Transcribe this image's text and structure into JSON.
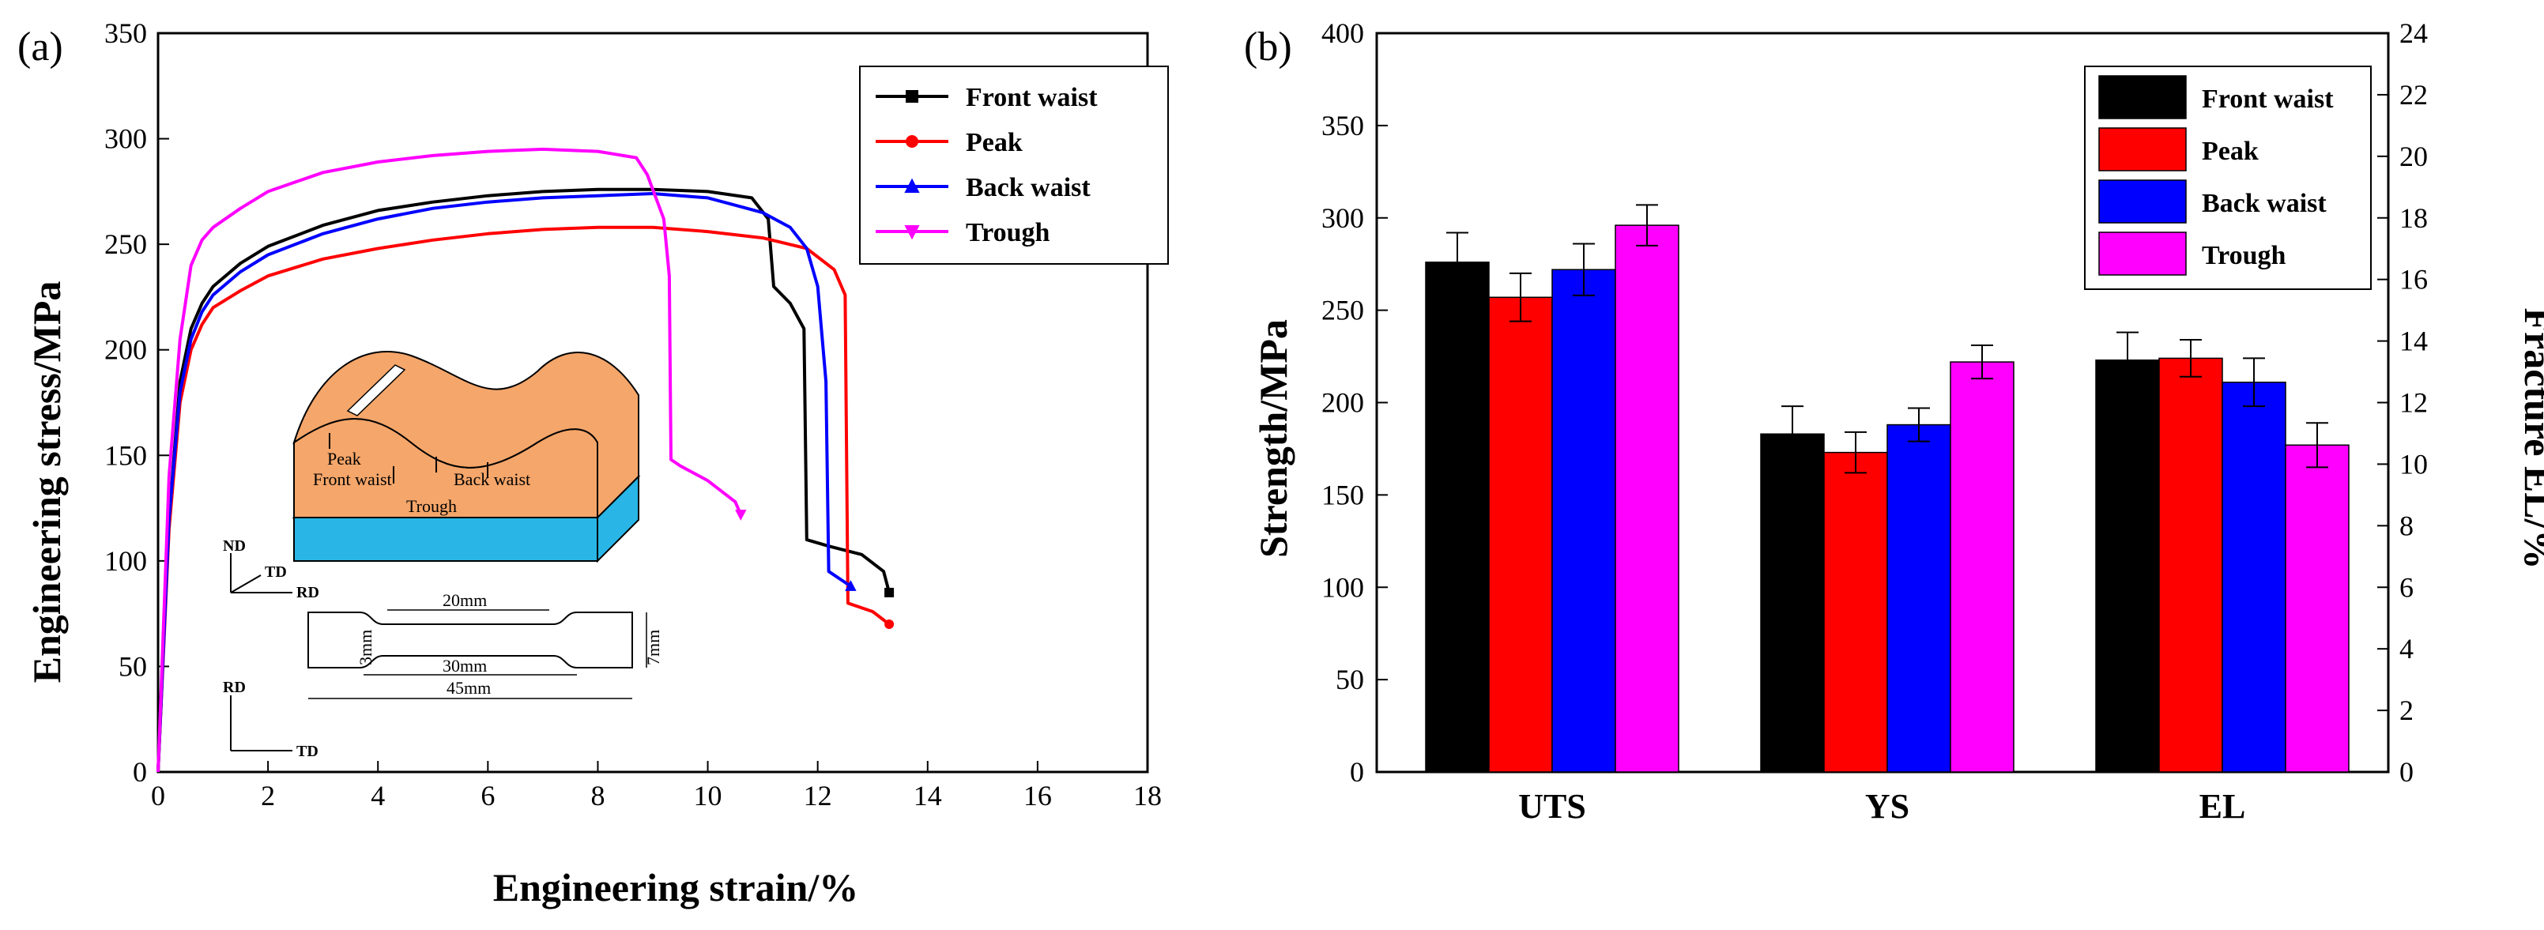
{
  "chart_data": [
    {
      "type": "line",
      "panel_label": "(a)",
      "xlabel": "Engineering strain/%",
      "ylabel": "Engineering stress/MPa",
      "xlim": [
        0,
        18
      ],
      "ylim": [
        0,
        350
      ],
      "xticks": [
        0,
        2,
        4,
        6,
        8,
        10,
        12,
        14,
        16,
        18
      ],
      "yticks": [
        0,
        50,
        100,
        150,
        200,
        250,
        300,
        350
      ],
      "legend_position": "top-right",
      "series": [
        {
          "name": "Front waist",
          "color": "#000000",
          "marker": "square",
          "points": [
            [
              0,
              0
            ],
            [
              0.2,
              120
            ],
            [
              0.4,
              185
            ],
            [
              0.6,
              210
            ],
            [
              0.8,
              222
            ],
            [
              1,
              230
            ],
            [
              1.5,
              241
            ],
            [
              2,
              249
            ],
            [
              3,
              259
            ],
            [
              4,
              266
            ],
            [
              5,
              270
            ],
            [
              6,
              273
            ],
            [
              7,
              275
            ],
            [
              8,
              276
            ],
            [
              9,
              276
            ],
            [
              10,
              275
            ],
            [
              10.8,
              272
            ],
            [
              11.1,
              262
            ],
            [
              11.2,
              230
            ],
            [
              11.5,
              222
            ],
            [
              11.75,
              210
            ],
            [
              11.8,
              110
            ],
            [
              12.2,
              107
            ],
            [
              12.8,
              103
            ],
            [
              13.2,
              95
            ],
            [
              13.3,
              85
            ]
          ]
        },
        {
          "name": "Peak",
          "color": "#ff0000",
          "marker": "circle",
          "points": [
            [
              0,
              0
            ],
            [
              0.2,
              115
            ],
            [
              0.4,
              175
            ],
            [
              0.6,
              200
            ],
            [
              0.8,
              212
            ],
            [
              1,
              220
            ],
            [
              1.5,
              228
            ],
            [
              2,
              235
            ],
            [
              3,
              243
            ],
            [
              4,
              248
            ],
            [
              5,
              252
            ],
            [
              6,
              255
            ],
            [
              7,
              257
            ],
            [
              8,
              258
            ],
            [
              9,
              258
            ],
            [
              10,
              256
            ],
            [
              11,
              253
            ],
            [
              11.8,
              248
            ],
            [
              12.3,
              238
            ],
            [
              12.5,
              226
            ],
            [
              12.55,
              80
            ],
            [
              13,
              76
            ],
            [
              13.3,
              70
            ]
          ]
        },
        {
          "name": "Back waist",
          "color": "#0000ff",
          "marker": "triangle-up",
          "points": [
            [
              0,
              0
            ],
            [
              0.2,
              120
            ],
            [
              0.4,
              180
            ],
            [
              0.6,
              205
            ],
            [
              0.8,
              218
            ],
            [
              1,
              226
            ],
            [
              1.5,
              237
            ],
            [
              2,
              245
            ],
            [
              3,
              255
            ],
            [
              4,
              262
            ],
            [
              5,
              267
            ],
            [
              6,
              270
            ],
            [
              7,
              272
            ],
            [
              8,
              273
            ],
            [
              9,
              274
            ],
            [
              10,
              272
            ],
            [
              11,
              265
            ],
            [
              11.5,
              258
            ],
            [
              11.8,
              248
            ],
            [
              12,
              230
            ],
            [
              12.15,
              185
            ],
            [
              12.2,
              95
            ],
            [
              12.6,
              88
            ]
          ]
        },
        {
          "name": "Trough",
          "color": "#ff00ff",
          "marker": "triangle-down",
          "points": [
            [
              0,
              0
            ],
            [
              0.2,
              140
            ],
            [
              0.4,
              205
            ],
            [
              0.6,
              240
            ],
            [
              0.8,
              252
            ],
            [
              1,
              258
            ],
            [
              1.5,
              267
            ],
            [
              2,
              275
            ],
            [
              3,
              284
            ],
            [
              4,
              289
            ],
            [
              5,
              292
            ],
            [
              6,
              294
            ],
            [
              7,
              295
            ],
            [
              8,
              294
            ],
            [
              8.7,
              291
            ],
            [
              8.9,
              283
            ],
            [
              9.2,
              262
            ],
            [
              9.3,
              235
            ],
            [
              9.33,
              148
            ],
            [
              9.5,
              145
            ],
            [
              10,
              138
            ],
            [
              10.5,
              128
            ],
            [
              10.6,
              122
            ]
          ]
        }
      ],
      "inset": {
        "peak": "Peak",
        "front_waist": "Front waist",
        "back_waist": "Back waist",
        "trough": "Trough",
        "axis_nd": "ND",
        "axis_td": "TD",
        "axis_rd": "RD",
        "dim_20": "20mm",
        "dim_30": "30mm",
        "dim_45": "45mm",
        "dim_3": "3mm",
        "dim_7": "7mm"
      }
    },
    {
      "type": "bar",
      "panel_label": "(b)",
      "ylabel": "Strength/MPa",
      "y2label": "Fracture EL/%",
      "ylim": [
        0,
        400
      ],
      "y2lim": [
        0,
        24
      ],
      "yticks": [
        0,
        50,
        100,
        150,
        200,
        250,
        300,
        350,
        400
      ],
      "y2ticks": [
        0,
        2,
        4,
        6,
        8,
        10,
        12,
        14,
        16,
        18,
        20,
        22,
        24
      ],
      "categories": [
        "UTS",
        "YS",
        "EL"
      ],
      "legend_position": "top-right",
      "series": [
        {
          "name": "Front waist",
          "color": "#000000",
          "values": [
            276,
            183,
            223
          ],
          "errors": [
            16,
            15,
            15
          ]
        },
        {
          "name": "Peak",
          "color": "#ff0000",
          "values": [
            257,
            173,
            224
          ],
          "errors": [
            13,
            11,
            10
          ]
        },
        {
          "name": "Back waist",
          "color": "#0000ff",
          "values": [
            272,
            188,
            211
          ],
          "errors": [
            14,
            9,
            13
          ]
        },
        {
          "name": "Trough",
          "color": "#ff00ff",
          "values": [
            296,
            222,
            177
          ],
          "errors": [
            11,
            9,
            12
          ]
        }
      ]
    }
  ]
}
